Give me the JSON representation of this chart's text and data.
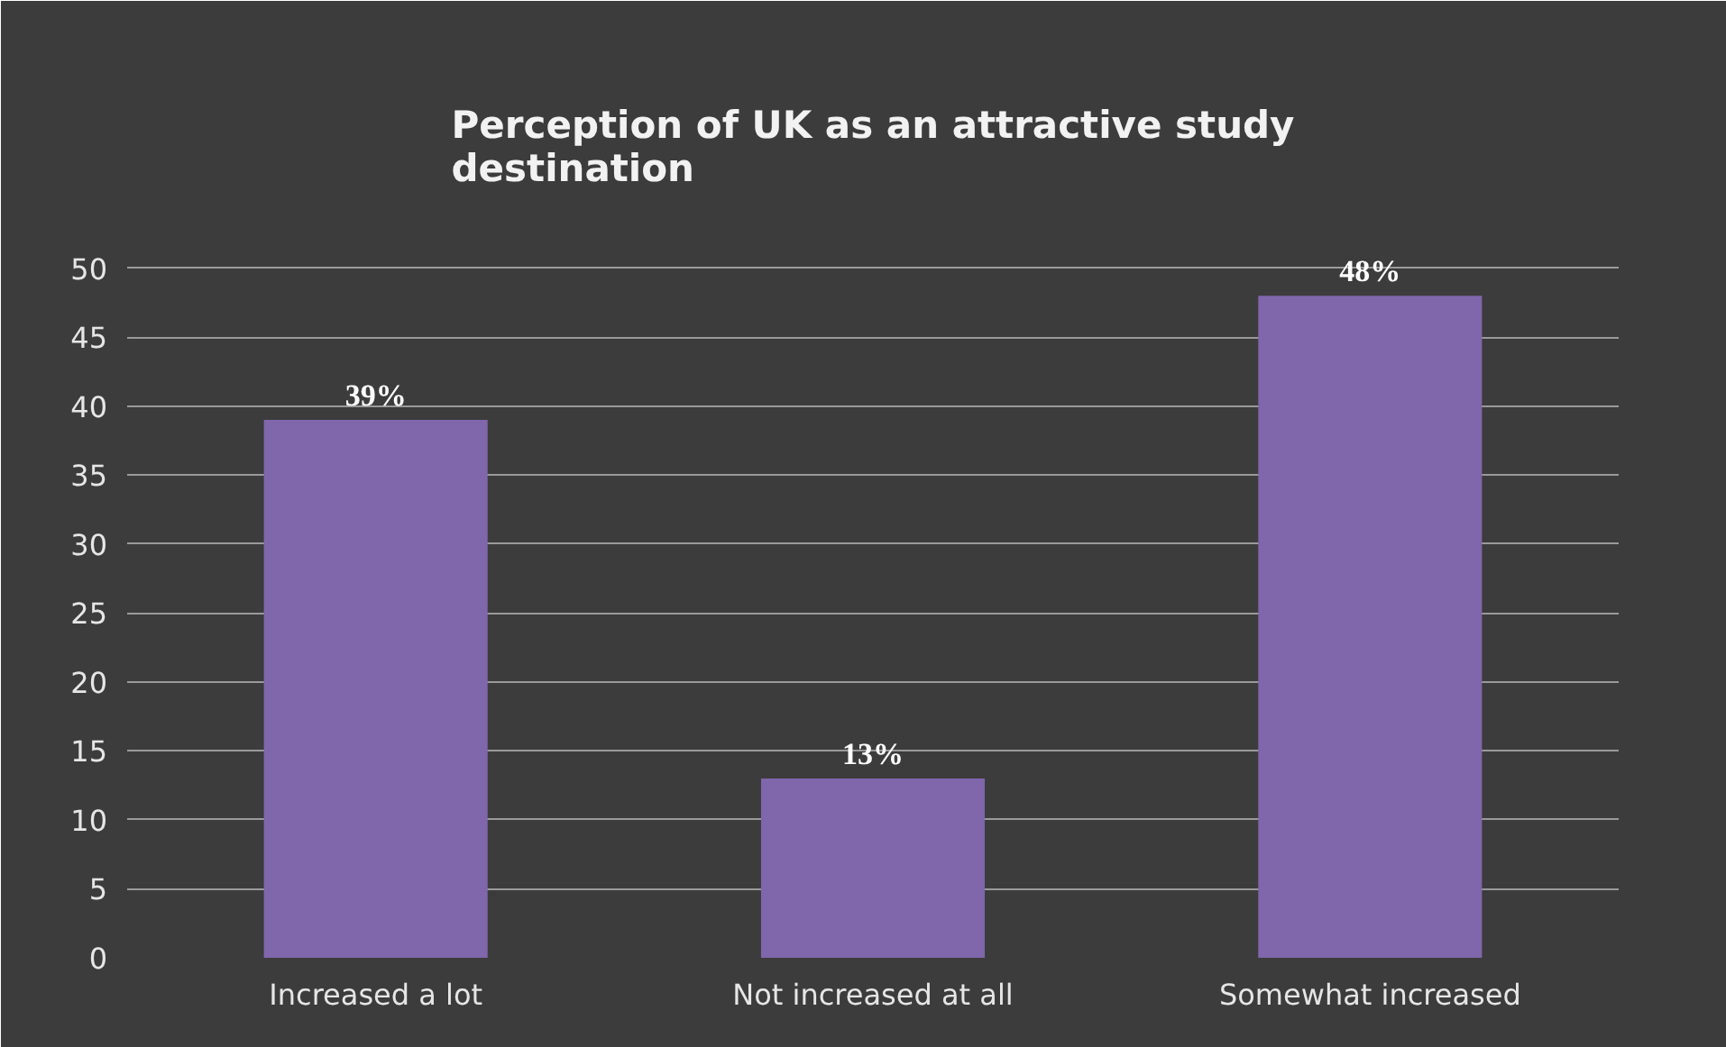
{
  "chart_data": {
    "type": "bar",
    "title": "Perception of UK as an attractive study destination",
    "categories": [
      "Increased a lot",
      "Not increased at all",
      "Somewhat increased"
    ],
    "values": [
      39,
      13,
      48
    ],
    "value_labels": [
      "39%",
      "13%",
      "48%"
    ],
    "color": "#8066ab",
    "ylim": [
      0,
      55
    ],
    "yticks": [
      0,
      5,
      10,
      15,
      20,
      25,
      30,
      35,
      40,
      45,
      50
    ],
    "grid": "y"
  }
}
